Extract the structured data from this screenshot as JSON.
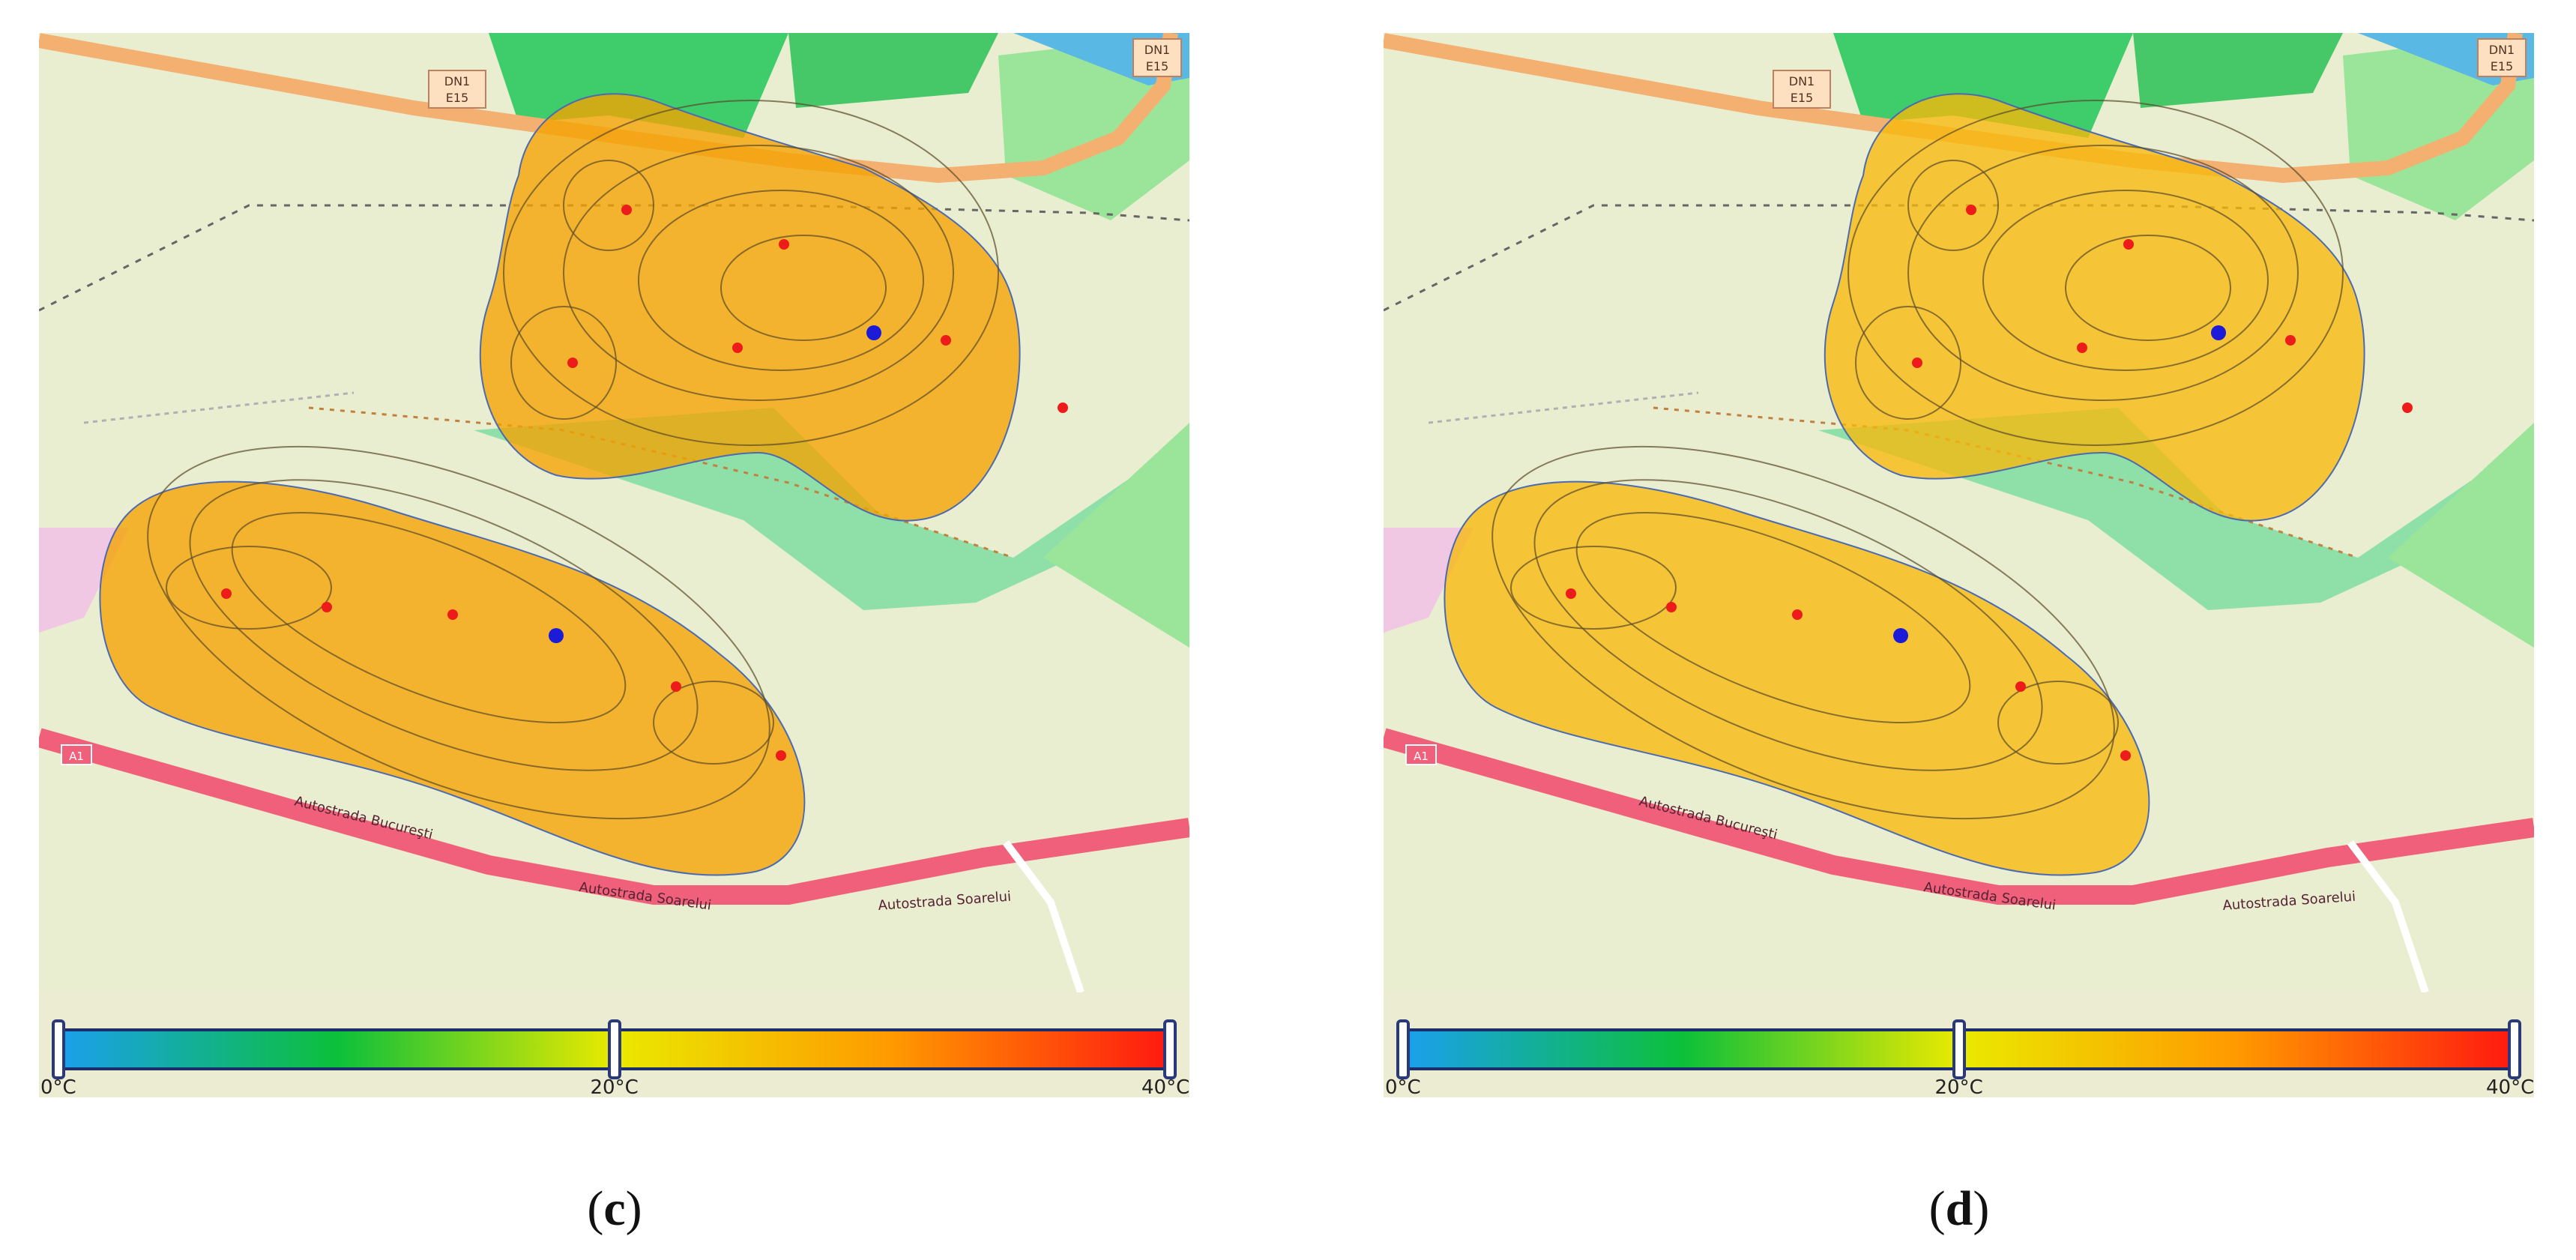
{
  "panels": [
    {
      "id": "c",
      "caption": {
        "open": "(",
        "letter": "c",
        "close": ")"
      },
      "heat_fill": "#f5a300",
      "road_signs": [
        "DN1",
        "DN1"
      ],
      "road_sign_sub": [
        "E15",
        "E15"
      ],
      "motorway_badge": "A1",
      "street_labels": [
        "Autostrada Bucureşti",
        "Autostrada Soarelui",
        "Autostrada Soarelui"
      ],
      "legend": {
        "colors": [
          "#1aa0ec",
          "#0cc03a",
          "#eaea00",
          "#ff9a00",
          "#ff1a10"
        ],
        "min_label": "0°C",
        "mid_label": "20°C",
        "max_label": "40°C",
        "min_value": 0,
        "mid_value": 20,
        "max_value": 40
      }
    },
    {
      "id": "d",
      "caption": {
        "open": "(",
        "letter": "d",
        "close": ")"
      },
      "heat_fill": "#f7b80c",
      "road_signs": [
        "DN1",
        "DN1"
      ],
      "road_sign_sub": [
        "E15",
        "E15"
      ],
      "motorway_badge": "A1",
      "street_labels": [
        "Autostrada Bucureşti",
        "Autostrada Soarelui",
        "Autostrada Soarelui"
      ],
      "legend": {
        "colors": [
          "#1aa0ec",
          "#0cc03a",
          "#eaea00",
          "#ff9a00",
          "#ff1a10"
        ],
        "min_label": "0°C",
        "mid_label": "20°C",
        "max_label": "40°C",
        "min_value": 0,
        "mid_value": 20,
        "max_value": 40
      }
    }
  ],
  "colors": {
    "land": "#eaeed0",
    "forest": "#3fcc6a",
    "meadow": "#9be59a",
    "water": "#5ab8e4",
    "motorway": "#f0607a",
    "trunk": "#f4b070",
    "sensor": "#ee1b1b",
    "reference_sensor": "#1b1bd8",
    "isoline": "#5a4a2a"
  }
}
